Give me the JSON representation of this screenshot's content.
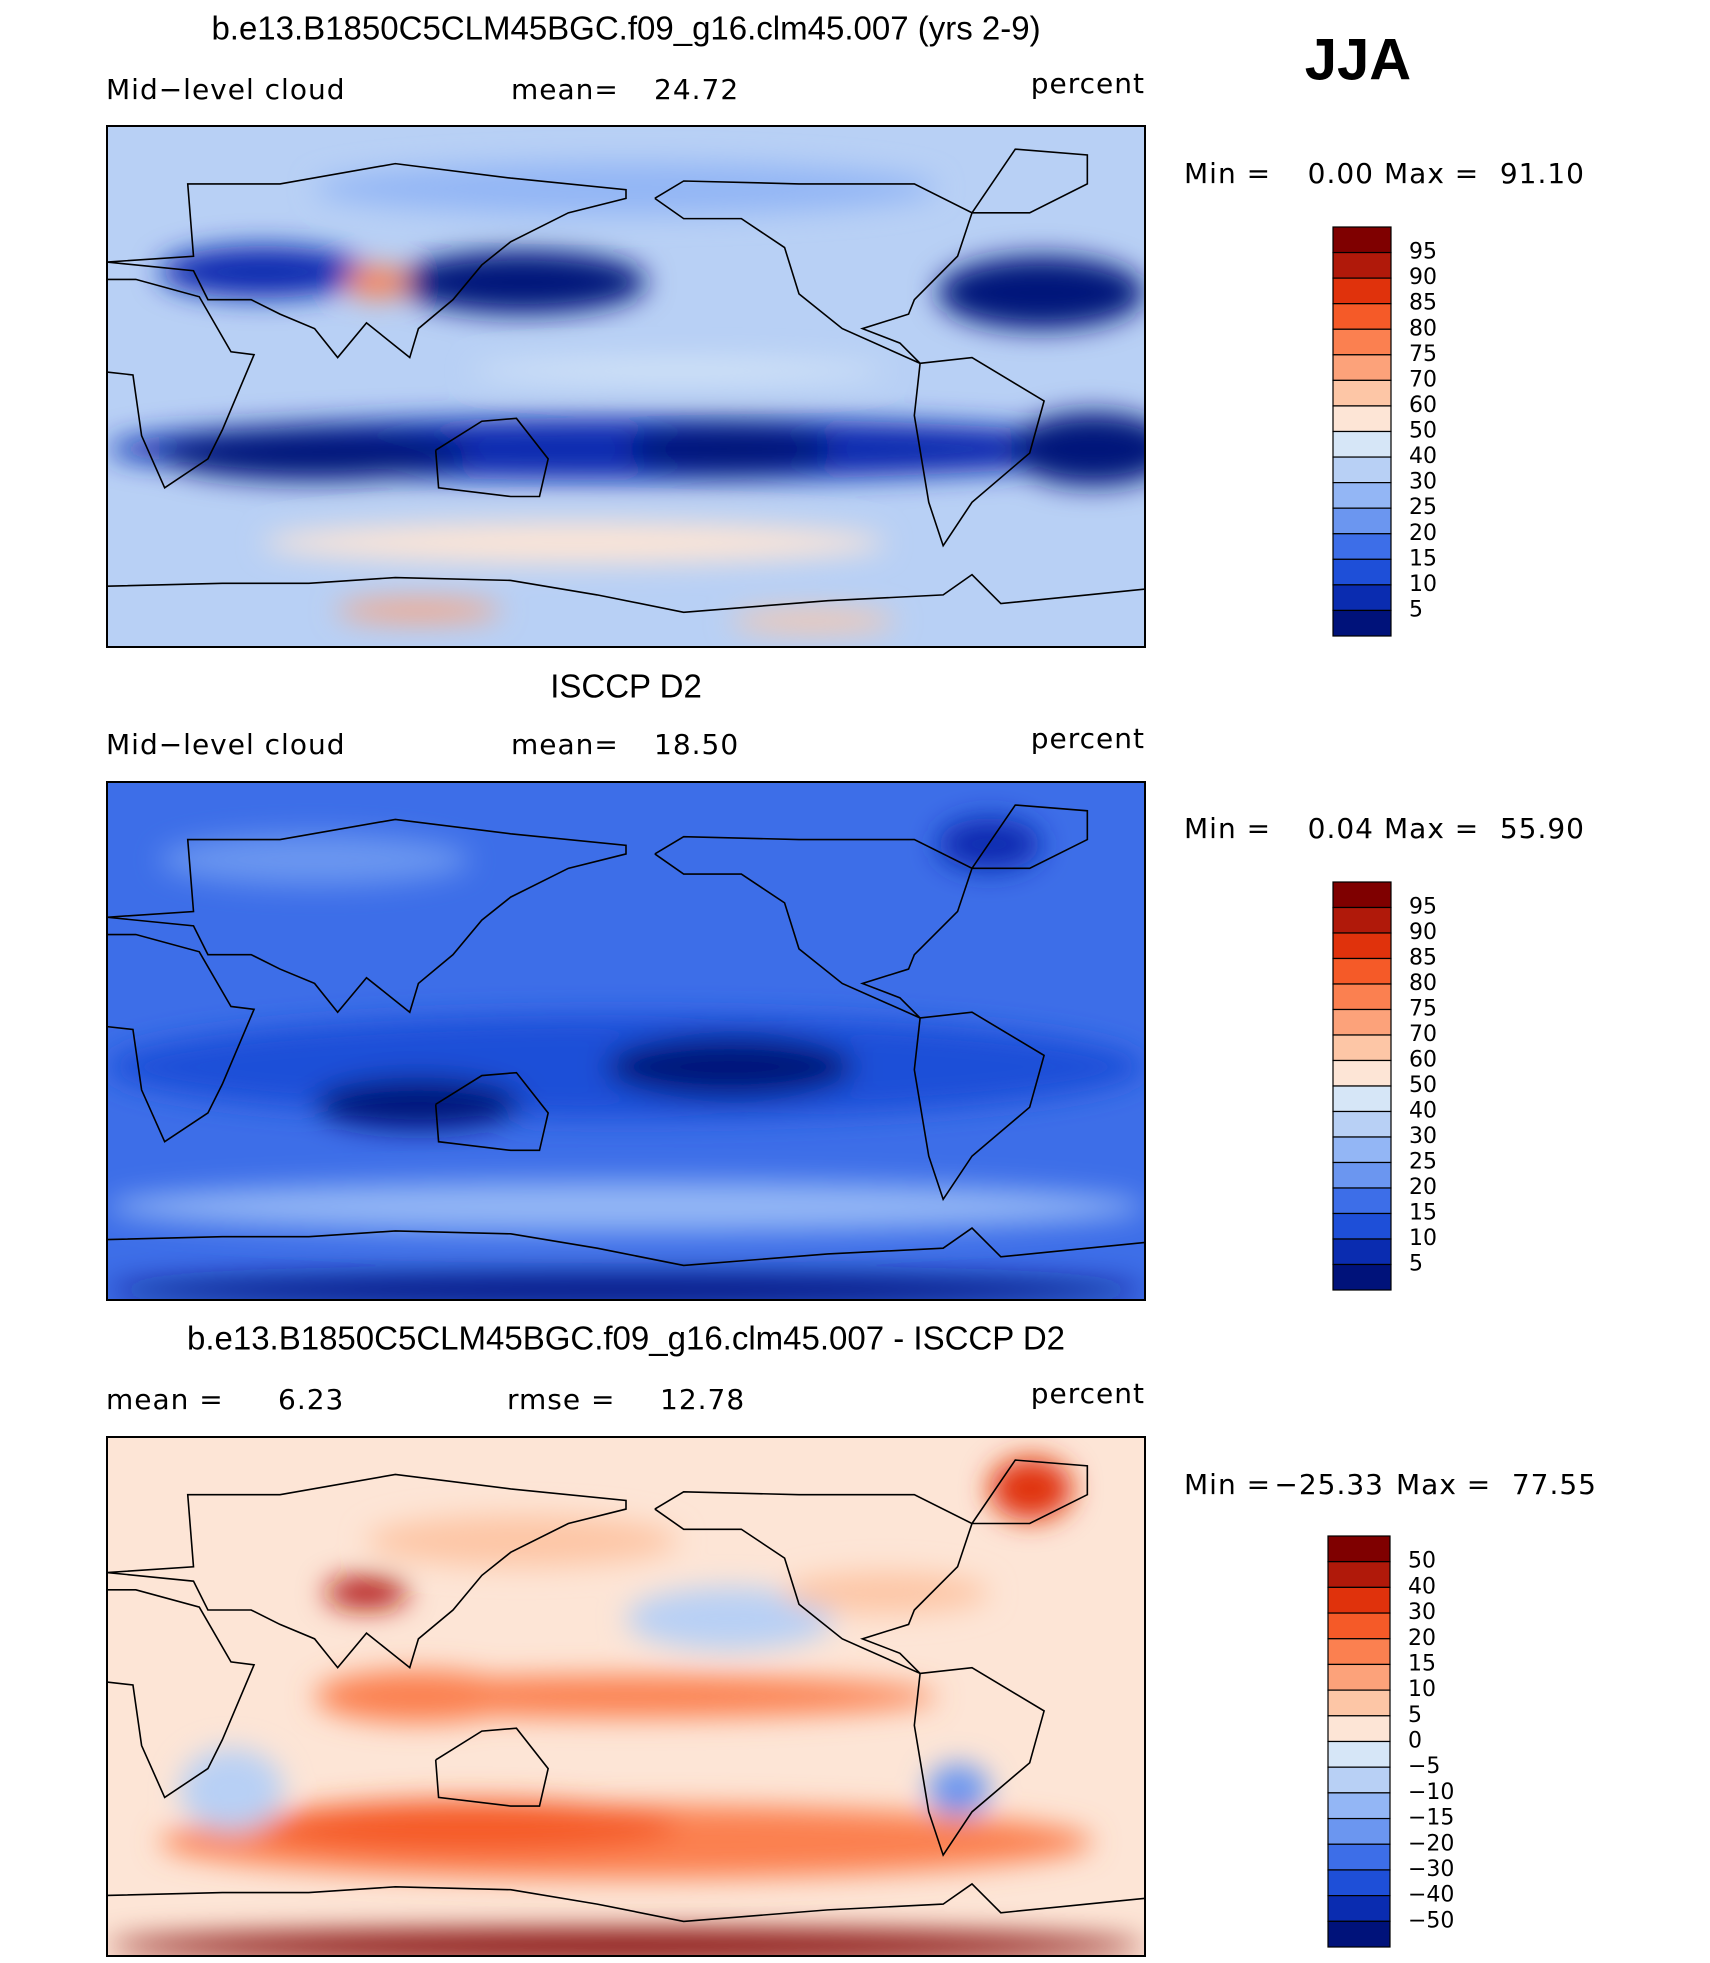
{
  "header": {
    "season": "JJA"
  },
  "panels": [
    {
      "title": "b.e13.B1850C5CLM45BGC.f09_g16.clm45.007 (yrs 2-9)",
      "labels": [
        "Mid−level cloud",
        "mean=",
        "24.72"
      ],
      "units": "percent",
      "min_label": "Min =",
      "min": "0.00",
      "max_label": "Max =",
      "max": "91.10",
      "colorbar": {
        "labels": [
          "95",
          "90",
          "85",
          "80",
          "75",
          "70",
          "60",
          "50",
          "40",
          "30",
          "25",
          "20",
          "15",
          "10",
          "5"
        ],
        "colors": [
          "#7f0000",
          "#b0190a",
          "#e0320c",
          "#f55a28",
          "#fb8050",
          "#fca27a",
          "#fdc6a6",
          "#fde5d6",
          "#d6e6f7",
          "#b8d0f5",
          "#93b6f5",
          "#6b96f0",
          "#3d6ee8",
          "#1e4fd8",
          "#0a2cb0",
          "#00127a"
        ]
      }
    },
    {
      "title": "ISCCP D2",
      "labels": [
        "Mid−level cloud",
        "mean=",
        "18.50"
      ],
      "units": "percent",
      "min_label": "Min =",
      "min": "0.04",
      "max_label": "Max =",
      "max": "55.90",
      "colorbar": {
        "labels": [
          "95",
          "90",
          "85",
          "80",
          "75",
          "70",
          "60",
          "50",
          "40",
          "30",
          "25",
          "20",
          "15",
          "10",
          "5"
        ],
        "colors": [
          "#7f0000",
          "#b0190a",
          "#e0320c",
          "#f55a28",
          "#fb8050",
          "#fca27a",
          "#fdc6a6",
          "#fde5d6",
          "#d6e6f7",
          "#b8d0f5",
          "#93b6f5",
          "#6b96f0",
          "#3d6ee8",
          "#1e4fd8",
          "#0a2cb0",
          "#00127a"
        ]
      }
    },
    {
      "title": "b.e13.B1850C5CLM45BGC.f09_g16.clm45.007 - ISCCP D2",
      "labels": [
        "mean =",
        "6.23",
        "rmse =",
        "12.78"
      ],
      "units": "percent",
      "min_label": "Min =",
      "min": "−25.33",
      "max_label": "Max =",
      "max": "77.55",
      "colorbar": {
        "labels": [
          "50",
          "40",
          "30",
          "20",
          "15",
          "10",
          "5",
          "0",
          "−5",
          "−10",
          "−15",
          "−20",
          "−30",
          "−40",
          "−50"
        ],
        "colors": [
          "#7f0000",
          "#b0190a",
          "#e0320c",
          "#f55a28",
          "#fb8050",
          "#fca27a",
          "#fdc6a6",
          "#fde5d6",
          "#d6e6f7",
          "#b8d0f5",
          "#93b6f5",
          "#6b96f0",
          "#3d6ee8",
          "#1e4fd8",
          "#0a2cb0",
          "#00127a"
        ]
      }
    }
  ]
}
